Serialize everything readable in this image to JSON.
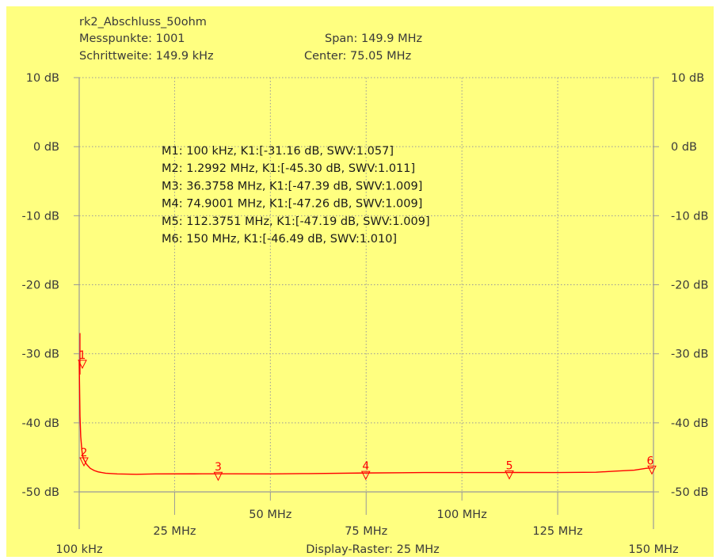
{
  "header": {
    "title": "rk2_Abschluss_50ohm",
    "messpunkte": "Messpunkte: 1001",
    "schrittweite": "Schrittweite: 149.9 kHz",
    "span": "Span: 149.9 MHz",
    "center": "Center: 75.05 MHz"
  },
  "colors": {
    "background": "#ffff80",
    "trace": "#ff0000",
    "grid": "#999999",
    "text": "#333333"
  },
  "chart_data": {
    "type": "line",
    "title": "rk2_Abschluss_50ohm",
    "xlabel": "Display-Raster: 25 MHz",
    "ylabel": "",
    "xlim": [
      0.1,
      150
    ],
    "ylim": [
      -50,
      10
    ],
    "grid": true,
    "y_ticks": [
      "10 dB",
      "0 dB",
      "-10 dB",
      "-20 dB",
      "-30 dB",
      "-40 dB",
      "-50 dB"
    ],
    "y_tick_values": [
      10,
      0,
      -10,
      -20,
      -30,
      -40,
      -50
    ],
    "x_ticks_upper": [
      {
        "value": 50,
        "label": "50 MHz"
      },
      {
        "value": 100,
        "label": "100 MHz"
      },
      {
        "value": 150,
        "label": "150 MHz"
      }
    ],
    "x_ticks_lower": [
      {
        "value": 0.1,
        "label": "100 kHz"
      },
      {
        "value": 25,
        "label": "25 MHz"
      },
      {
        "value": 75,
        "label": "75 MHz"
      },
      {
        "value": 125,
        "label": "125 MHz"
      }
    ],
    "series": [
      {
        "color": "#ff0000",
        "x": [
          0.1,
          0.2,
          0.3,
          0.5,
          0.8,
          1.0,
          1.3,
          1.6,
          2.0,
          2.5,
          3,
          4,
          5,
          7,
          10,
          15,
          20,
          30,
          40,
          50,
          60,
          75,
          90,
          100,
          112.4,
          125,
          135,
          140,
          145,
          148,
          150
        ],
        "y": [
          -31.16,
          -35.0,
          -39.0,
          -42.0,
          -44.0,
          -44.8,
          -45.3,
          -45.6,
          -46.0,
          -46.3,
          -46.6,
          -46.9,
          -47.1,
          -47.3,
          -47.4,
          -47.45,
          -47.4,
          -47.39,
          -47.38,
          -47.4,
          -47.35,
          -47.26,
          -47.2,
          -47.2,
          -47.19,
          -47.2,
          -47.15,
          -47.0,
          -46.85,
          -46.6,
          -46.49
        ]
      }
    ],
    "markers": [
      {
        "id": "1",
        "x": 0.1,
        "y": -31.16,
        "text": "M1: 100 kHz, K1:[-31.16 dB, SWV:1.057]"
      },
      {
        "id": "2",
        "x": 1.2992,
        "y": -45.3,
        "text": "M2: 1.2992 MHz, K1:[-45.30 dB, SWV:1.011]"
      },
      {
        "id": "3",
        "x": 36.3758,
        "y": -47.39,
        "text": "M3: 36.3758 MHz, K1:[-47.39 dB, SWV:1.009]"
      },
      {
        "id": "4",
        "x": 74.9001,
        "y": -47.26,
        "text": "M4: 74.9001 MHz, K1:[-47.26 dB, SWV:1.009]"
      },
      {
        "id": "5",
        "x": 112.3751,
        "y": -47.19,
        "text": "M5: 112.3751 MHz, K1:[-47.19 dB, SWV:1.009]"
      },
      {
        "id": "6",
        "x": 150,
        "y": -46.49,
        "text": "M6: 150 MHz, K1:[-46.49 dB, SWV:1.010]"
      }
    ]
  }
}
